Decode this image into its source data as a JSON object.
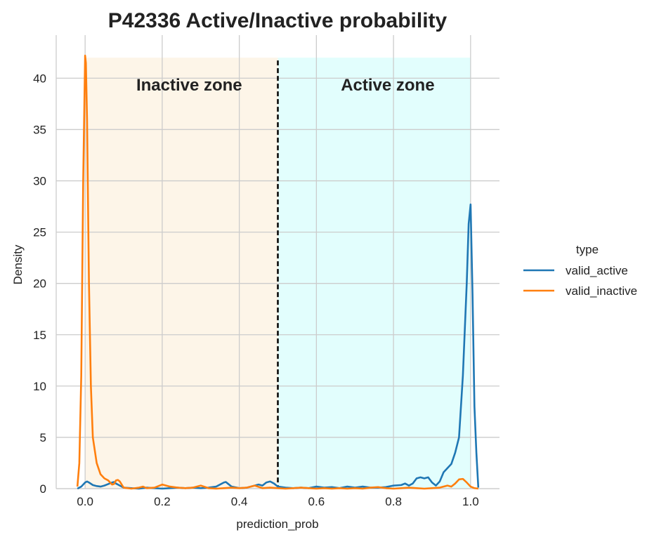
{
  "chart_data": {
    "type": "line",
    "title": "P42336  Active/Inactive probability",
    "xlabel": "prediction_prob",
    "ylabel": "Density",
    "xlim": [
      -0.075,
      1.075
    ],
    "ylim": [
      0,
      44.2
    ],
    "xticks": [
      0.0,
      0.2,
      0.4,
      0.6,
      0.8,
      1.0
    ],
    "xtick_labels": [
      "0.0",
      "0.2",
      "0.4",
      "0.6",
      "0.8",
      "1.0"
    ],
    "yticks": [
      0,
      5,
      10,
      15,
      20,
      25,
      30,
      35,
      40
    ],
    "ytick_labels": [
      "0",
      "5",
      "10",
      "15",
      "20",
      "25",
      "30",
      "35",
      "40"
    ],
    "grid": true,
    "threshold": 0.5,
    "zones": [
      {
        "label": "Inactive zone",
        "x_start": 0.0,
        "x_end": 0.5,
        "y_top": 42.0,
        "color": "#fdf5e8"
      },
      {
        "label": "Active zone",
        "x_start": 0.5,
        "x_end": 1.0,
        "y_top": 42.0,
        "color": "#e2fefd"
      }
    ],
    "legend": {
      "title": "type",
      "placement": "right"
    },
    "series": [
      {
        "name": "valid_active",
        "color": "#1f77b4",
        "x": [
          -0.02,
          -0.01,
          0.0,
          0.005,
          0.01,
          0.02,
          0.03,
          0.04,
          0.05,
          0.06,
          0.07,
          0.075,
          0.08,
          0.09,
          0.1,
          0.12,
          0.14,
          0.15,
          0.16,
          0.18,
          0.2,
          0.22,
          0.24,
          0.26,
          0.28,
          0.3,
          0.32,
          0.34,
          0.36,
          0.365,
          0.37,
          0.38,
          0.4,
          0.42,
          0.44,
          0.45,
          0.46,
          0.47,
          0.48,
          0.49,
          0.5,
          0.52,
          0.54,
          0.56,
          0.58,
          0.6,
          0.62,
          0.64,
          0.66,
          0.68,
          0.7,
          0.72,
          0.74,
          0.76,
          0.78,
          0.8,
          0.82,
          0.83,
          0.84,
          0.85,
          0.86,
          0.87,
          0.88,
          0.89,
          0.9,
          0.91,
          0.92,
          0.93,
          0.94,
          0.95,
          0.96,
          0.97,
          0.98,
          0.99,
          0.995,
          1.0,
          1.005,
          1.01,
          1.015,
          1.02
        ],
        "y": [
          0.0,
          0.2,
          0.6,
          0.7,
          0.6,
          0.35,
          0.25,
          0.2,
          0.3,
          0.45,
          0.6,
          0.65,
          0.5,
          0.3,
          0.1,
          0.05,
          0.0,
          0.05,
          0.1,
          0.05,
          0.0,
          0.05,
          0.1,
          0.05,
          0.1,
          0.05,
          0.1,
          0.2,
          0.6,
          0.65,
          0.5,
          0.2,
          0.05,
          0.1,
          0.3,
          0.4,
          0.3,
          0.6,
          0.7,
          0.5,
          0.2,
          0.1,
          0.05,
          0.1,
          0.05,
          0.2,
          0.1,
          0.15,
          0.05,
          0.2,
          0.1,
          0.2,
          0.1,
          0.1,
          0.15,
          0.3,
          0.35,
          0.5,
          0.3,
          0.5,
          1.0,
          1.1,
          1.0,
          1.1,
          0.6,
          0.3,
          0.7,
          1.6,
          2.0,
          2.4,
          3.5,
          5.0,
          11.0,
          20.0,
          25.8,
          27.7,
          19.0,
          8.0,
          3.5,
          0.1
        ]
      },
      {
        "name": "valid_inactive",
        "color": "#ff7f0e",
        "x": [
          -0.02,
          -0.015,
          -0.01,
          -0.005,
          0.0,
          0.002,
          0.005,
          0.01,
          0.015,
          0.02,
          0.03,
          0.04,
          0.05,
          0.06,
          0.07,
          0.075,
          0.08,
          0.085,
          0.09,
          0.1,
          0.12,
          0.14,
          0.15,
          0.16,
          0.18,
          0.2,
          0.22,
          0.24,
          0.26,
          0.28,
          0.3,
          0.32,
          0.34,
          0.36,
          0.38,
          0.4,
          0.42,
          0.44,
          0.46,
          0.48,
          0.5,
          0.52,
          0.54,
          0.56,
          0.58,
          0.6,
          0.62,
          0.64,
          0.66,
          0.68,
          0.7,
          0.72,
          0.74,
          0.76,
          0.78,
          0.8,
          0.82,
          0.84,
          0.86,
          0.88,
          0.9,
          0.92,
          0.94,
          0.95,
          0.96,
          0.97,
          0.98,
          0.99,
          1.0,
          1.01,
          1.02
        ],
        "y": [
          0.2,
          2.5,
          11.0,
          30.0,
          42.2,
          41.5,
          36.0,
          20.0,
          10.0,
          5.0,
          2.5,
          1.4,
          1.0,
          0.8,
          0.4,
          0.45,
          0.8,
          0.85,
          0.7,
          0.1,
          0.0,
          0.1,
          0.2,
          0.05,
          0.1,
          0.4,
          0.2,
          0.1,
          0.05,
          0.1,
          0.3,
          0.05,
          0.0,
          0.05,
          0.1,
          0.05,
          0.1,
          0.3,
          0.05,
          0.1,
          0.05,
          0.0,
          0.05,
          0.1,
          0.05,
          0.0,
          0.05,
          0.0,
          0.05,
          0.0,
          0.05,
          0.0,
          0.1,
          0.15,
          0.05,
          0.0,
          0.05,
          0.1,
          0.05,
          0.0,
          0.05,
          0.1,
          0.3,
          0.2,
          0.5,
          0.9,
          0.95,
          0.6,
          0.2,
          0.05,
          0.0
        ]
      }
    ]
  }
}
